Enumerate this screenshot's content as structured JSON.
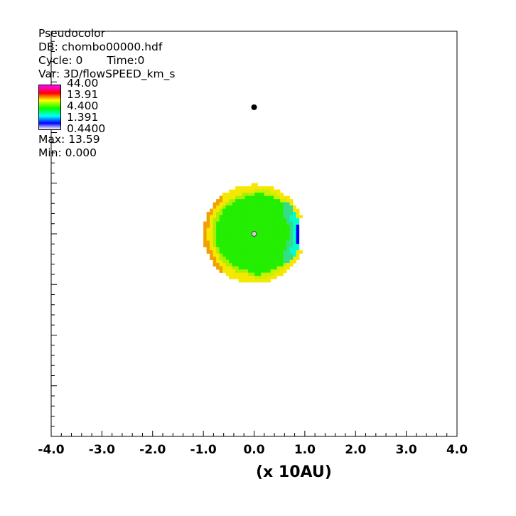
{
  "legend": {
    "plot_type": "Pseudocolor",
    "db": "DB: chombo00000.hdf",
    "cycle": "Cycle: 0",
    "time": "Time:0",
    "var": "Var: 3D/flowSPEED_km_s",
    "colorbar_labels": [
      "44.00",
      "13.91",
      "4.400",
      "1.391",
      "0.4400"
    ],
    "max": "Max:  13.59",
    "min": "Min:  0.000"
  },
  "chart_data": {
    "type": "heatmap",
    "x_unit_label": "(x 10AU)",
    "xlim": [
      -4.0,
      4.0
    ],
    "ylim": [
      -4.0,
      4.0
    ],
    "x_ticks": [
      "-4.0",
      "-3.0",
      "-2.0",
      "-1.0",
      "0.0",
      "1.0",
      "2.0",
      "3.0",
      "4.0"
    ],
    "x_tick_values": [
      -4,
      -3,
      -2,
      -1,
      0,
      1,
      2,
      3,
      4
    ],
    "color_scale": "log",
    "color_range": [
      0.44,
      44.0
    ],
    "max_value": 13.59,
    "min_value": 0.0,
    "bubble": {
      "center": [
        0.0,
        0.0
      ],
      "radius": 1.0,
      "interior_value": 6.0,
      "rim_value": 11.0
    },
    "black_marker": [
      0.0,
      2.5
    ],
    "center_marker": [
      0.0,
      0.0
    ],
    "colors": {
      "interior": "#22ee00",
      "rim": "#f5e800",
      "rim_outer": "#f0a000",
      "low": "#0000ff",
      "mid_low": "#00ffcc"
    }
  }
}
